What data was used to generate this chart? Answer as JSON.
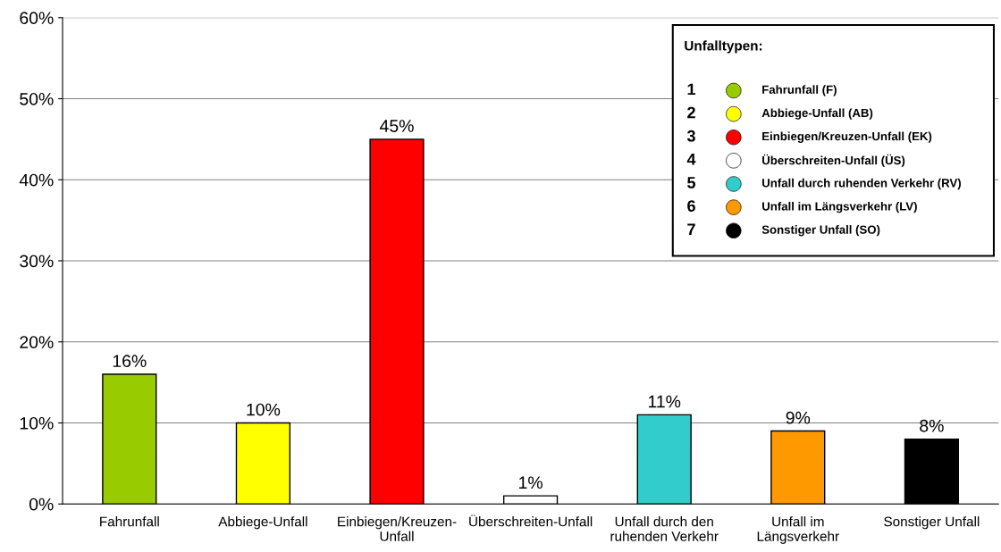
{
  "chart_data": {
    "type": "bar",
    "categories": [
      "Fahrunfall",
      "Abbiege-Unfall",
      "Einbiegen/Kreuzen-Unfall",
      "Überschreiten-Unfall",
      "Unfall durch den ruhenden Verkehr",
      "Unfall im Längsverkehr",
      "Sonstiger Unfall"
    ],
    "values": [
      16,
      10,
      45,
      1,
      11,
      9,
      8
    ],
    "colors": [
      "#99cc00",
      "#ffff00",
      "#ff0000",
      "#ffffff",
      "#33cccc",
      "#ff9900",
      "#000000"
    ],
    "value_labels": [
      "16%",
      "10%",
      "45%",
      "1%",
      "11%",
      "9%",
      "8%"
    ],
    "ylim": [
      0,
      60
    ],
    "yticks": [
      {
        "value": 0,
        "label": "0%"
      },
      {
        "value": 10,
        "label": "10%"
      },
      {
        "value": 20,
        "label": "20%"
      },
      {
        "value": 30,
        "label": "30%"
      },
      {
        "value": 40,
        "label": "40%"
      },
      {
        "value": 50,
        "label": "50%"
      },
      {
        "value": 60,
        "label": "60%"
      }
    ],
    "grid": "y",
    "annotations": [
      "Unfalltypen:",
      "1",
      "Fahrunfall (F)",
      "2",
      "Abbiege-Unfall (AB)",
      "3",
      "Einbiegen/Kreuzen-Unfall (EK)",
      "4",
      "Überschreiten-Unfall (ÜS)",
      "5",
      "Unfall durch ruhenden Verkehr (RV)",
      "6",
      "Unfall im Längsverkehr (LV)",
      "7",
      "Sonstiger Unfall (SO)"
    ]
  }
}
